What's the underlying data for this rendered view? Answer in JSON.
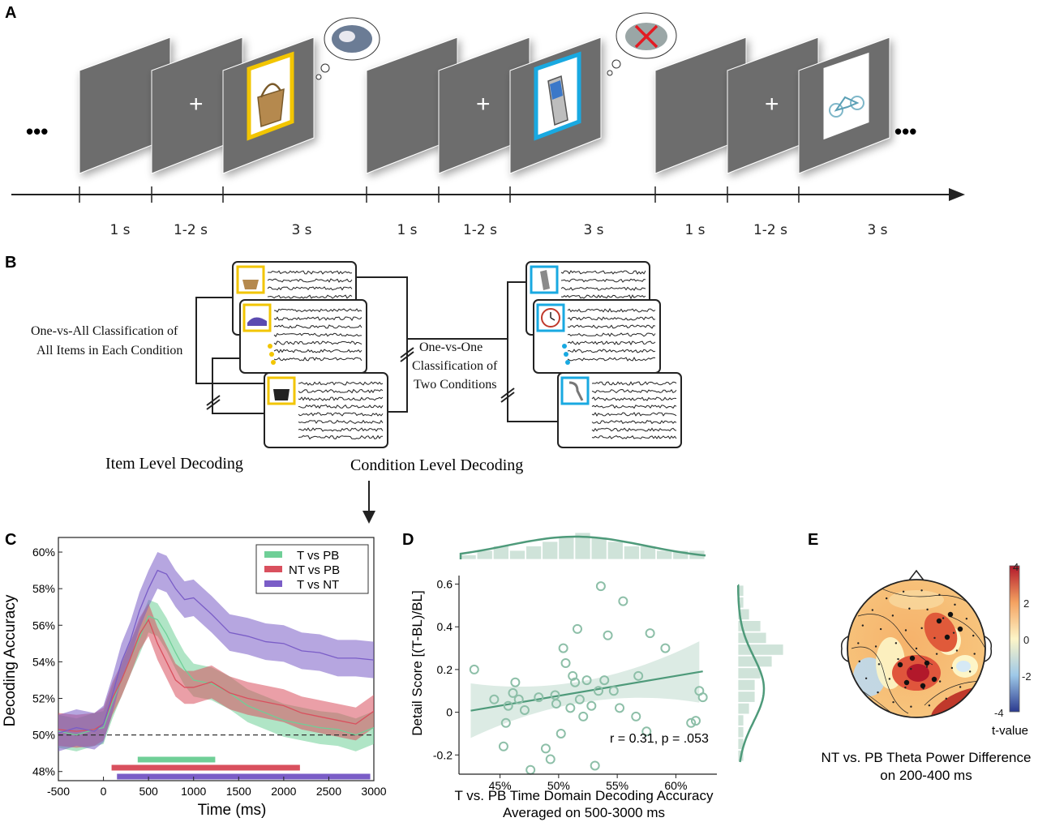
{
  "panel_labels": {
    "a": "A",
    "b": "B",
    "c": "C",
    "d": "D",
    "e": "E"
  },
  "panel_a": {
    "ellipsis_left": "•••",
    "ellipsis_right": "•••",
    "fixation": "+",
    "durations": [
      "1 s",
      "1-2 s",
      "3 s",
      "1 s",
      "1-2 s",
      "3 s",
      "1 s",
      "1-2 s",
      "3 s"
    ],
    "stimuli": [
      {
        "object": "basket",
        "frame_color": "#f2c500"
      },
      {
        "object": "phone",
        "frame_color": "#19a9e1"
      },
      {
        "object": "bicycle",
        "frame_color": "#ffffff"
      }
    ]
  },
  "panel_b": {
    "item_label": "Item Level Decoding",
    "condition_label": "Condition Level Decoding",
    "one_vs_all_line1": "One-vs-All Classification of",
    "one_vs_all_line2": "All Items in Each Condition",
    "one_vs_one_line1": "One-vs-One",
    "one_vs_one_line2": "Classification of",
    "one_vs_one_line3": "Two Conditions",
    "left_items": [
      "basket-icon",
      "shoe-icon",
      "handbag-icon"
    ],
    "right_items": [
      "phone-icon",
      "clock-icon",
      "spoon-icon"
    ],
    "colors": {
      "left": "#f2c500",
      "right": "#19a9e1"
    }
  },
  "chart_data": [
    {
      "type": "line",
      "panel": "C",
      "xlabel": "Time (ms)",
      "ylabel": "Decoding Accuracy",
      "xlim": [
        -500,
        3000
      ],
      "ylim": [
        47.5,
        60.8
      ],
      "x_ticks": [
        -500,
        0,
        500,
        1000,
        1500,
        2000,
        2500,
        3000
      ],
      "y_ticks": [
        "48%",
        "50%",
        "52%",
        "54%",
        "56%",
        "58%",
        "60%"
      ],
      "y_tick_values": [
        48,
        50,
        52,
        54,
        56,
        58,
        60
      ],
      "chance_level": 50,
      "legend_position": "top-right",
      "series": [
        {
          "name": "T vs PB",
          "color": "#6fcf97",
          "x": [
            -500,
            -300,
            -100,
            0,
            100,
            200,
            300,
            400,
            500,
            600,
            700,
            800,
            900,
            1000,
            1200,
            1400,
            1600,
            1800,
            2000,
            2200,
            2400,
            2600,
            2800,
            3000
          ],
          "values": [
            50.2,
            50.0,
            50.3,
            50.4,
            51.8,
            53.0,
            54.2,
            55.3,
            56.5,
            56.3,
            55.5,
            54.5,
            53.6,
            53.0,
            52.8,
            52.3,
            51.6,
            51.2,
            50.8,
            50.6,
            50.4,
            50.3,
            50.0,
            50.4
          ],
          "ci": 0.9
        },
        {
          "name": "NT vs PB",
          "color": "#d9505e",
          "x": [
            -500,
            -300,
            -100,
            0,
            100,
            200,
            300,
            400,
            500,
            600,
            700,
            800,
            900,
            1000,
            1200,
            1400,
            1600,
            1800,
            2000,
            2200,
            2400,
            2600,
            2800,
            3000
          ],
          "values": [
            50.3,
            50.2,
            50.3,
            50.6,
            52.0,
            53.0,
            54.2,
            55.5,
            56.3,
            55.0,
            54.0,
            53.0,
            52.6,
            52.6,
            52.9,
            52.3,
            52.0,
            51.8,
            51.6,
            51.2,
            51.0,
            50.8,
            50.6,
            51.3
          ],
          "ci": 0.9
        },
        {
          "name": "T vs NT",
          "color": "#7a5dc7",
          "x": [
            -500,
            -300,
            -100,
            0,
            100,
            200,
            300,
            400,
            500,
            600,
            700,
            800,
            900,
            1000,
            1200,
            1400,
            1600,
            1800,
            2000,
            2200,
            2400,
            2600,
            2800,
            3000
          ],
          "values": [
            50.1,
            50.4,
            50.2,
            50.6,
            52.2,
            54.0,
            55.2,
            56.8,
            58.0,
            59.0,
            58.8,
            58.0,
            57.4,
            57.5,
            56.6,
            55.6,
            55.4,
            55.1,
            55.0,
            54.6,
            54.5,
            54.2,
            54.2,
            54.1
          ],
          "ci": 1.0
        }
      ],
      "significance_bars": [
        {
          "series": "T vs PB",
          "start": 380,
          "end": 1240,
          "color": "#6fcf97"
        },
        {
          "series": "NT vs PB",
          "start": 90,
          "end": 2180,
          "color": "#d9505e"
        },
        {
          "series": "T vs NT",
          "start": 150,
          "end": 2960,
          "color": "#7a5dc7"
        }
      ]
    },
    {
      "type": "scatter",
      "panel": "D",
      "xlabel_line1": "T vs. PB Time Domain Decoding Accuracy",
      "xlabel_line2": "Averaged on 500-3000 ms",
      "ylabel": "Detail Score [(T-BL)/BL]",
      "xlim": [
        41.5,
        63.5
      ],
      "ylim": [
        -0.29,
        0.64
      ],
      "x_ticks": [
        "45%",
        "50%",
        "55%",
        "60%"
      ],
      "x_tick_values": [
        45,
        50,
        55,
        60
      ],
      "y_ticks": [
        "-0.2",
        "0",
        "0.2",
        "0.4",
        "0.6"
      ],
      "y_tick_values": [
        -0.2,
        0,
        0.2,
        0.4,
        0.6
      ],
      "annotation": "r = 0.31, p = .053",
      "color": "#4e9a7a",
      "x": [
        42.8,
        44.5,
        45.3,
        45.5,
        45.7,
        46.1,
        46.3,
        46.6,
        47.1,
        47.6,
        48.3,
        48.9,
        49.3,
        49.7,
        49.8,
        50.2,
        50.4,
        50.6,
        51.0,
        51.2,
        51.4,
        51.6,
        51.8,
        52.1,
        52.4,
        52.8,
        53.1,
        53.4,
        53.6,
        53.9,
        54.2,
        54.7,
        55.2,
        55.5,
        56.6,
        56.8,
        57.5,
        57.8,
        59.1,
        61.3,
        61.7,
        62.0,
        62.3
      ],
      "values": [
        0.2,
        0.06,
        -0.16,
        -0.05,
        0.03,
        0.09,
        0.14,
        0.06,
        0.01,
        -0.27,
        0.07,
        -0.17,
        -0.22,
        0.08,
        0.04,
        -0.1,
        0.3,
        0.23,
        0.02,
        0.17,
        0.14,
        0.39,
        0.06,
        -0.02,
        0.15,
        0.03,
        -0.25,
        0.1,
        0.59,
        0.15,
        0.36,
        0.1,
        0.02,
        0.52,
        -0.02,
        0.17,
        -0.09,
        0.37,
        0.3,
        -0.05,
        -0.04,
        0.1,
        0.07
      ],
      "regression": {
        "slope": 0.0093,
        "intercept": -0.388
      },
      "x_hist_counts": [
        1,
        2,
        3,
        2,
        3,
        4,
        5,
        6,
        5,
        4,
        3,
        3,
        2,
        2,
        2
      ],
      "y_hist_counts": [
        1,
        1,
        2,
        4,
        5,
        8,
        6,
        4,
        3,
        3,
        2,
        1,
        1,
        1,
        1
      ]
    }
  ],
  "panel_e": {
    "title_line1": "NT vs. PB Theta Power Difference",
    "title_line2": "on 200-400 ms",
    "colorbar_label": "t-value",
    "colorbar_ticks": [
      "4",
      "2",
      "0",
      "-2",
      "-4"
    ],
    "colorbar_colors": [
      "#b2182b",
      "#f4a261",
      "#fdf5c7",
      "#9ec9e8",
      "#2b3a8f"
    ]
  }
}
